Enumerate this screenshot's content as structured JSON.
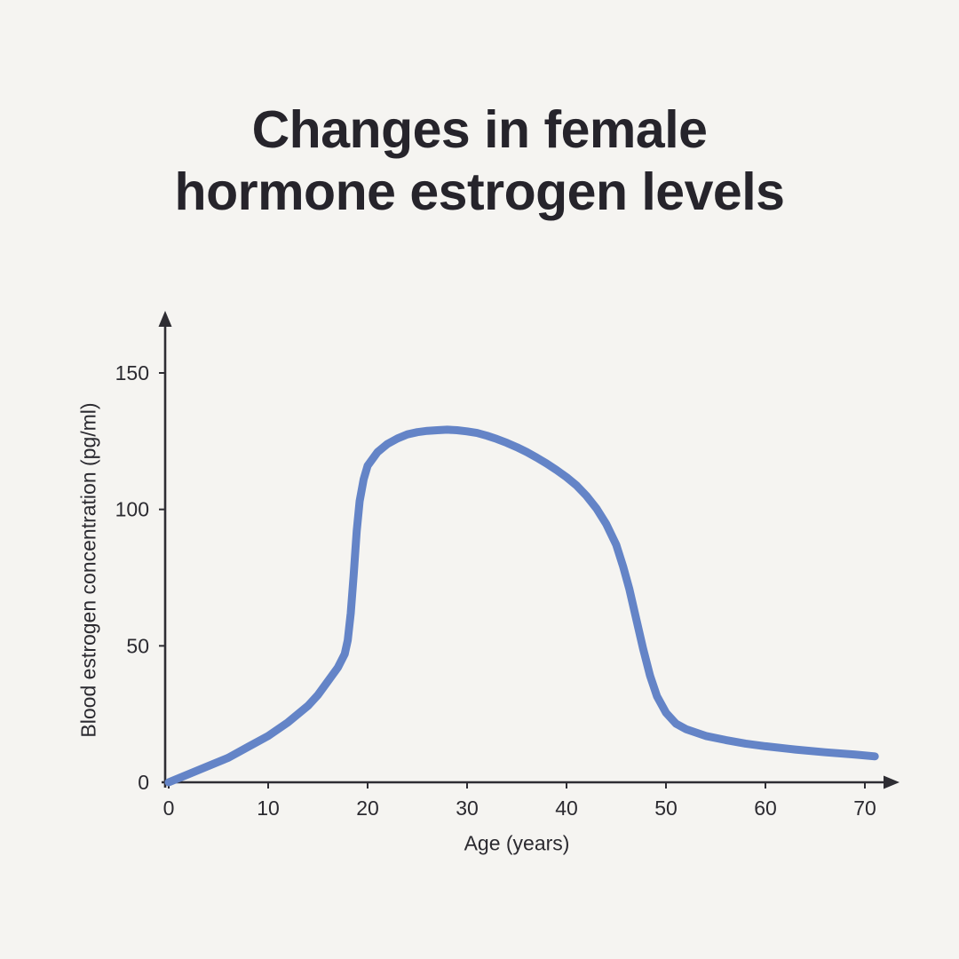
{
  "header": {
    "title_line1": "Changes in female",
    "title_line2": "hormone estrogen levels"
  },
  "chart_data": {
    "type": "line",
    "title": "Changes in female hormone estrogen levels",
    "xlabel": "Age (years)",
    "ylabel": "Blood estrogen concentration (pg/ml)",
    "x_ticks": [
      0,
      10,
      20,
      30,
      40,
      50,
      60,
      70
    ],
    "y_ticks": [
      0,
      50,
      100,
      150
    ],
    "xlim": [
      0,
      72
    ],
    "ylim": [
      0,
      160
    ],
    "grid": false,
    "legend": "none",
    "line_color": "#6484c7",
    "axis_color": "#2e2d33",
    "tick_label_color": "#2b2a30",
    "background_color": "#f5f4f1",
    "series": [
      {
        "name": "Blood estrogen concentration",
        "points": [
          [
            0,
            0
          ],
          [
            2,
            3
          ],
          [
            4,
            6
          ],
          [
            6,
            9
          ],
          [
            8,
            13
          ],
          [
            10,
            17
          ],
          [
            12,
            22
          ],
          [
            14,
            28
          ],
          [
            15,
            32
          ],
          [
            16,
            37
          ],
          [
            17,
            42
          ],
          [
            17.7,
            47
          ],
          [
            18,
            52
          ],
          [
            18.3,
            62
          ],
          [
            18.6,
            76
          ],
          [
            18.9,
            92
          ],
          [
            19.2,
            103
          ],
          [
            19.6,
            111
          ],
          [
            20,
            116
          ],
          [
            21,
            121
          ],
          [
            22,
            124
          ],
          [
            23,
            126
          ],
          [
            24,
            127.5
          ],
          [
            25,
            128.3
          ],
          [
            26,
            128.8
          ],
          [
            27,
            129
          ],
          [
            28,
            129.2
          ],
          [
            29,
            129
          ],
          [
            30,
            128.6
          ],
          [
            31,
            128
          ],
          [
            32,
            127
          ],
          [
            33,
            125.8
          ],
          [
            34,
            124.4
          ],
          [
            35,
            122.8
          ],
          [
            36,
            121
          ],
          [
            37,
            119
          ],
          [
            38,
            116.8
          ],
          [
            39,
            114.4
          ],
          [
            40,
            111.8
          ],
          [
            41,
            108.8
          ],
          [
            42,
            105
          ],
          [
            43,
            100.4
          ],
          [
            44,
            94.6
          ],
          [
            45,
            87
          ],
          [
            45.7,
            79
          ],
          [
            46.3,
            71
          ],
          [
            47,
            60
          ],
          [
            47.7,
            49
          ],
          [
            48.4,
            39
          ],
          [
            49.1,
            31.5
          ],
          [
            50,
            25.5
          ],
          [
            51,
            21.5
          ],
          [
            52,
            19.5
          ],
          [
            54,
            17
          ],
          [
            56,
            15.5
          ],
          [
            58,
            14.2
          ],
          [
            60,
            13.2
          ],
          [
            63,
            12
          ],
          [
            66,
            11
          ],
          [
            69,
            10.2
          ],
          [
            71,
            9.5
          ]
        ]
      }
    ]
  }
}
